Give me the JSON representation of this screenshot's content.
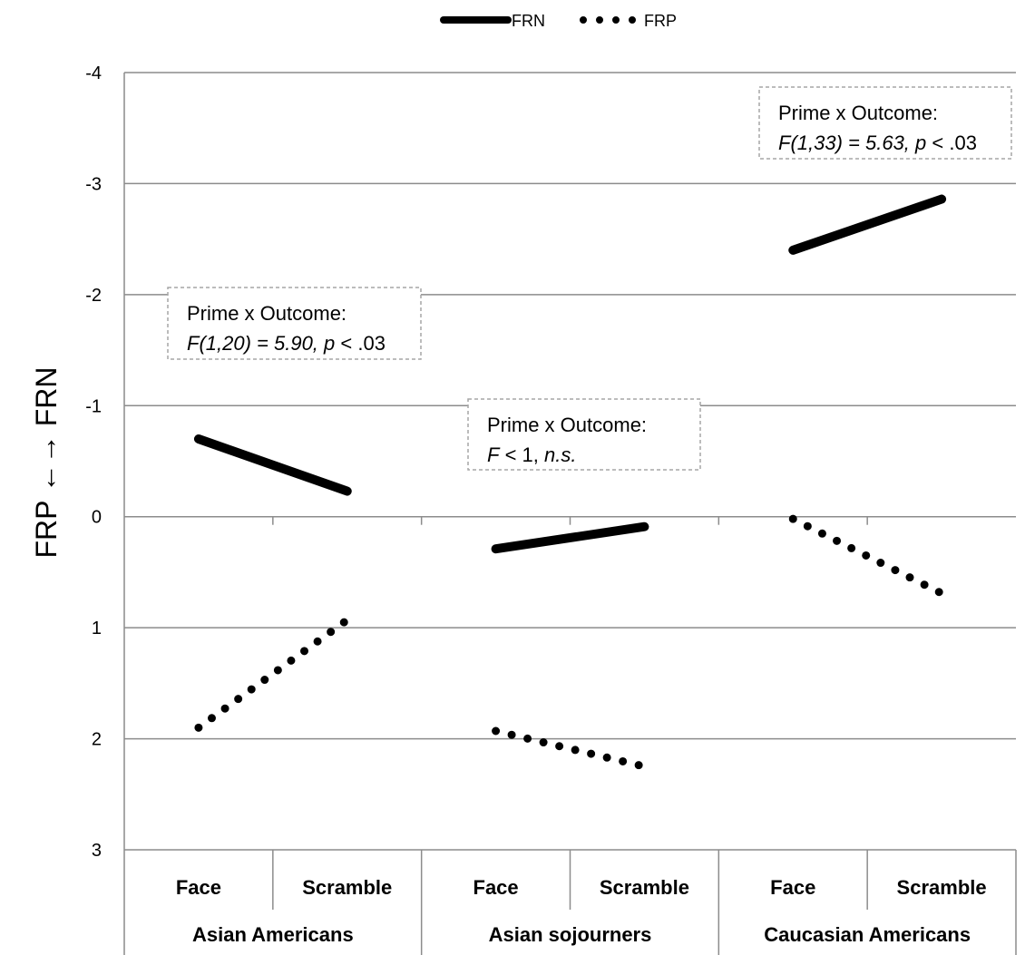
{
  "chart_data": {
    "type": "line",
    "title": "",
    "ylabel": "FRP ←→ FRN",
    "y_reversed": true,
    "ylim": [
      3,
      -4
    ],
    "yticks": [
      3,
      2,
      1,
      0,
      -1,
      -2,
      -3,
      -4
    ],
    "grid": true,
    "legend_position": "top",
    "groups": [
      "Asian Americans",
      "Asian sojourners",
      "Caucasian Americans"
    ],
    "categories": [
      "Face",
      "Scramble",
      "Face",
      "Scramble",
      "Face",
      "Scramble"
    ],
    "series": [
      {
        "name": "FRN",
        "style": "solid",
        "color": "#000000",
        "segments": [
          {
            "group": "Asian Americans",
            "values": [
              -0.7,
              -0.23
            ]
          },
          {
            "group": "Asian sojourners",
            "values": [
              0.29,
              0.09
            ]
          },
          {
            "group": "Caucasian Americans",
            "values": [
              -2.4,
              -2.86
            ]
          }
        ]
      },
      {
        "name": "FRP",
        "style": "dotted",
        "color": "#000000",
        "segments": [
          {
            "group": "Asian Americans",
            "values": [
              1.9,
              0.93
            ]
          },
          {
            "group": "Asian sojourners",
            "values": [
              1.93,
              2.25
            ]
          },
          {
            "group": "Caucasian Americans",
            "values": [
              0.02,
              0.69
            ]
          }
        ]
      }
    ],
    "annotations": [
      {
        "group": "Asian Americans",
        "line1": "Prime x Outcome:",
        "stat": "F(1,20) = 5.90,",
        "p_sym": "p",
        "p_val": " < .03"
      },
      {
        "group": "Asian sojourners",
        "line1": "Prime x Outcome:",
        "stat": "F",
        "p_sym": " < 1,",
        "p_val": " n.s."
      },
      {
        "group": "Caucasian Americans",
        "line1": "Prime x Outcome:",
        "stat": "F(1,33) = 5.63,",
        "p_sym": "p",
        "p_val": " < .03"
      }
    ]
  }
}
